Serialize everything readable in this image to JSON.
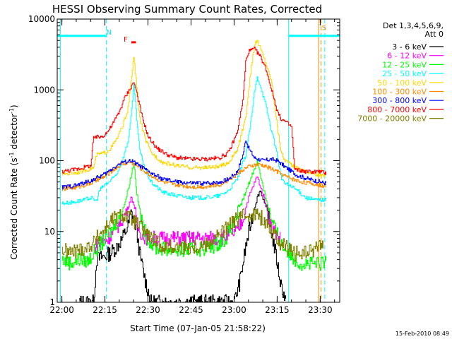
{
  "chart_data": {
    "type": "line",
    "title": "HESSI Observing Summary Count Rates, Corrected",
    "xlabel": "Start Time (07-Jan-05 21:58:22)",
    "ylabel_main": "Corrected Count Rate (s",
    "ylabel_sup1": "-1",
    "ylabel_mid": " detector",
    "ylabel_sup2": "-1",
    "ylabel_end": ")",
    "footer": "15-Feb-2010 08:49",
    "x_unit": "minutes",
    "xlim": [
      -1.63,
      96.8
    ],
    "ylim": [
      1,
      10000
    ],
    "yscale": "log",
    "x_ticks": [
      {
        "value": 0,
        "label": "22:00"
      },
      {
        "value": 15,
        "label": "22:15"
      },
      {
        "value": 30,
        "label": "22:30"
      },
      {
        "value": 45,
        "label": "22:45"
      },
      {
        "value": 60,
        "label": "23:00"
      },
      {
        "value": 75,
        "label": "23:15"
      },
      {
        "value": 90,
        "label": "23:30"
      }
    ],
    "y_ticks": [
      {
        "value": 1,
        "label": "1"
      },
      {
        "value": 10,
        "label": "10"
      },
      {
        "value": 100,
        "label": "100"
      },
      {
        "value": 1000,
        "label": "1000"
      },
      {
        "value": 10000,
        "label": "10000"
      }
    ],
    "legend": {
      "header1": "Det 1,3,4,5,6,9,",
      "header2": "Att 0",
      "position": "right"
    },
    "series": [
      {
        "name": "3 - 6 keV",
        "color": "#000000",
        "points": [
          [
            6,
            1
          ],
          [
            11,
            1
          ],
          [
            12,
            4
          ],
          [
            15,
            4.5
          ],
          [
            17,
            5
          ],
          [
            19,
            6
          ],
          [
            21,
            8
          ],
          [
            23,
            12
          ],
          [
            24,
            18
          ],
          [
            25,
            16
          ],
          [
            26,
            10
          ],
          [
            27,
            5
          ],
          [
            29,
            2
          ],
          [
            31,
            1
          ],
          [
            60,
            1
          ],
          [
            62,
            2
          ],
          [
            64,
            6
          ],
          [
            66,
            15
          ],
          [
            68,
            30
          ],
          [
            69,
            38
          ],
          [
            70,
            30
          ],
          [
            72,
            15
          ],
          [
            74,
            6
          ],
          [
            76,
            2
          ],
          [
            78,
            1
          ]
        ]
      },
      {
        "name": "6 - 12 keV",
        "color": "#ff00ff",
        "points": [
          [
            11,
            6
          ],
          [
            14,
            7
          ],
          [
            16,
            8
          ],
          [
            18,
            10
          ],
          [
            20,
            13
          ],
          [
            22,
            18
          ],
          [
            23,
            22
          ],
          [
            24,
            30
          ],
          [
            25,
            25
          ],
          [
            26,
            12
          ],
          [
            28,
            9
          ],
          [
            30,
            8
          ],
          [
            55,
            8
          ],
          [
            58,
            9
          ],
          [
            61,
            10
          ],
          [
            63,
            15
          ],
          [
            65,
            30
          ],
          [
            67,
            48
          ],
          [
            68,
            60
          ],
          [
            69,
            45
          ],
          [
            71,
            25
          ],
          [
            73,
            12
          ],
          [
            75,
            9
          ],
          [
            76,
            8
          ]
        ]
      },
      {
        "name": "12 - 25 keV",
        "color": "#00ff00",
        "points": [
          [
            0,
            4
          ],
          [
            3,
            3.6
          ],
          [
            6,
            4
          ],
          [
            9,
            3.8
          ],
          [
            11,
            5
          ],
          [
            14,
            7
          ],
          [
            17,
            10
          ],
          [
            20,
            16
          ],
          [
            22,
            26
          ],
          [
            24,
            60
          ],
          [
            25,
            95
          ],
          [
            26,
            35
          ],
          [
            28,
            12
          ],
          [
            30,
            8
          ],
          [
            32,
            6
          ],
          [
            38,
            5.5
          ],
          [
            45,
            5.5
          ],
          [
            52,
            6
          ],
          [
            57,
            8
          ],
          [
            60,
            14
          ],
          [
            63,
            28
          ],
          [
            66,
            60
          ],
          [
            68,
            100
          ],
          [
            69,
            65
          ],
          [
            71,
            30
          ],
          [
            73,
            14
          ],
          [
            75,
            9
          ],
          [
            77,
            6
          ],
          [
            80,
            4.5
          ],
          [
            83,
            3.6
          ],
          [
            88,
            3.4
          ],
          [
            92,
            3.6
          ]
        ]
      },
      {
        "name": "25 - 50 keV",
        "color": "#00ffff",
        "points": [
          [
            0,
            25
          ],
          [
            4,
            26
          ],
          [
            8,
            28
          ],
          [
            10,
            30
          ],
          [
            12,
            27
          ],
          [
            13,
            38
          ],
          [
            15,
            46
          ],
          [
            17,
            52
          ],
          [
            19,
            65
          ],
          [
            21,
            100
          ],
          [
            23,
            190
          ],
          [
            24,
            400
          ],
          [
            25,
            1200
          ],
          [
            26,
            380
          ],
          [
            27,
            140
          ],
          [
            29,
            75
          ],
          [
            31,
            50
          ],
          [
            35,
            36
          ],
          [
            40,
            32
          ],
          [
            45,
            30
          ],
          [
            50,
            30
          ],
          [
            55,
            32
          ],
          [
            58,
            38
          ],
          [
            61,
            55
          ],
          [
            64,
            120
          ],
          [
            66,
            400
          ],
          [
            67,
            900
          ],
          [
            68,
            1500
          ],
          [
            69,
            1200
          ],
          [
            71,
            600
          ],
          [
            73,
            260
          ],
          [
            75,
            120
          ],
          [
            76,
            65
          ],
          [
            77,
            50
          ],
          [
            79,
            45
          ],
          [
            82,
            38
          ],
          [
            85,
            30
          ],
          [
            88,
            28
          ],
          [
            92,
            28
          ]
        ]
      },
      {
        "name": "50 - 100 keV",
        "color": "#ffd700",
        "points": [
          [
            0,
            65
          ],
          [
            5,
            68
          ],
          [
            9,
            75
          ],
          [
            11,
            80
          ],
          [
            12,
            120
          ],
          [
            15,
            130
          ],
          [
            17,
            150
          ],
          [
            19,
            200
          ],
          [
            21,
            300
          ],
          [
            23,
            550
          ],
          [
            24,
            1300
          ],
          [
            25,
            2900
          ],
          [
            26,
            1100
          ],
          [
            27,
            400
          ],
          [
            29,
            200
          ],
          [
            31,
            130
          ],
          [
            35,
            95
          ],
          [
            40,
            85
          ],
          [
            45,
            80
          ],
          [
            50,
            80
          ],
          [
            55,
            82
          ],
          [
            58,
            95
          ],
          [
            61,
            140
          ],
          [
            64,
            400
          ],
          [
            66,
            2200
          ],
          [
            67,
            4200
          ],
          [
            68,
            5000
          ],
          [
            69,
            4000
          ],
          [
            71,
            2400
          ],
          [
            73,
            1300
          ],
          [
            74,
            650
          ],
          [
            75,
            300
          ],
          [
            76,
            160
          ],
          [
            77,
            110
          ],
          [
            80,
            85
          ],
          [
            85,
            70
          ],
          [
            88,
            65
          ],
          [
            92,
            60
          ]
        ]
      },
      {
        "name": "100 - 300 keV",
        "color": "#ff8c00",
        "points": [
          [
            0,
            40
          ],
          [
            5,
            42
          ],
          [
            10,
            48
          ],
          [
            15,
            60
          ],
          [
            18,
            75
          ],
          [
            21,
            90
          ],
          [
            24,
            95
          ],
          [
            27,
            80
          ],
          [
            30,
            65
          ],
          [
            35,
            50
          ],
          [
            40,
            45
          ],
          [
            45,
            43
          ],
          [
            50,
            43
          ],
          [
            55,
            46
          ],
          [
            60,
            60
          ],
          [
            63,
            75
          ],
          [
            66,
            85
          ],
          [
            69,
            88
          ],
          [
            72,
            80
          ],
          [
            75,
            70
          ],
          [
            78,
            60
          ],
          [
            82,
            52
          ],
          [
            86,
            48
          ],
          [
            90,
            45
          ],
          [
            92,
            44
          ]
        ]
      },
      {
        "name": "300 - 800 keV",
        "color": "#0000ff",
        "points": [
          [
            0,
            42
          ],
          [
            5,
            45
          ],
          [
            10,
            52
          ],
          [
            15,
            65
          ],
          [
            18,
            80
          ],
          [
            21,
            95
          ],
          [
            24,
            100
          ],
          [
            27,
            85
          ],
          [
            30,
            70
          ],
          [
            35,
            55
          ],
          [
            40,
            50
          ],
          [
            45,
            48
          ],
          [
            50,
            48
          ],
          [
            55,
            50
          ],
          [
            58,
            55
          ],
          [
            61,
            70
          ],
          [
            63,
            120
          ],
          [
            64,
            200
          ],
          [
            65,
            150
          ],
          [
            67,
            110
          ],
          [
            70,
            100
          ],
          [
            73,
            105
          ],
          [
            75,
            100
          ],
          [
            78,
            80
          ],
          [
            82,
            62
          ],
          [
            86,
            55
          ],
          [
            90,
            50
          ],
          [
            92,
            48
          ]
        ]
      },
      {
        "name": "800 - 7000 keV",
        "color": "#ff0000",
        "points": [
          [
            0,
            70
          ],
          [
            5,
            76
          ],
          [
            10,
            85
          ],
          [
            11,
            210
          ],
          [
            14,
            220
          ],
          [
            16,
            260
          ],
          [
            18,
            350
          ],
          [
            20,
            500
          ],
          [
            22,
            800
          ],
          [
            24,
            1100
          ],
          [
            25,
            1300
          ],
          [
            26,
            900
          ],
          [
            28,
            400
          ],
          [
            30,
            220
          ],
          [
            33,
            150
          ],
          [
            37,
            120
          ],
          [
            40,
            110
          ],
          [
            45,
            105
          ],
          [
            50,
            105
          ],
          [
            55,
            110
          ],
          [
            58,
            130
          ],
          [
            61,
            250
          ],
          [
            63,
            700
          ],
          [
            64,
            2500
          ],
          [
            65,
            3500
          ],
          [
            67,
            3800
          ],
          [
            69,
            3000
          ],
          [
            71,
            2000
          ],
          [
            73,
            1000
          ],
          [
            75,
            500
          ],
          [
            76,
            400
          ],
          [
            78,
            350
          ],
          [
            80,
            300
          ],
          [
            81,
            75
          ],
          [
            85,
            70
          ],
          [
            90,
            70
          ],
          [
            92,
            66
          ]
        ]
      },
      {
        "name": "7000 - 20000 keV",
        "color": "#808000",
        "points": [
          [
            0,
            5.5
          ],
          [
            3,
            5
          ],
          [
            6,
            5.5
          ],
          [
            9,
            6
          ],
          [
            11,
            7
          ],
          [
            13,
            9
          ],
          [
            15,
            11
          ],
          [
            17,
            14
          ],
          [
            19,
            16
          ],
          [
            21,
            17
          ],
          [
            23,
            16
          ],
          [
            25,
            14
          ],
          [
            27,
            12
          ],
          [
            29,
            10
          ],
          [
            31,
            8
          ],
          [
            33,
            7
          ],
          [
            36,
            6
          ],
          [
            40,
            6
          ],
          [
            45,
            6
          ],
          [
            50,
            6.5
          ],
          [
            53,
            8
          ],
          [
            56,
            10
          ],
          [
            59,
            13
          ],
          [
            62,
            16
          ],
          [
            64,
            17
          ],
          [
            66,
            18
          ],
          [
            68,
            17
          ],
          [
            70,
            15
          ],
          [
            72,
            12
          ],
          [
            74,
            9
          ],
          [
            76,
            7
          ],
          [
            78,
            6
          ],
          [
            80,
            5
          ],
          [
            83,
            4.8
          ],
          [
            86,
            5
          ],
          [
            89,
            6
          ],
          [
            90,
            7
          ],
          [
            91,
            6
          ]
        ]
      }
    ],
    "annotations": [
      {
        "label": "N",
        "x": 15.5,
        "y": 6000,
        "color": "#00e5ee"
      },
      {
        "label": "F",
        "x": 21.5,
        "y": 4800,
        "color": "#ff0000"
      },
      {
        "label": "S",
        "x": 90.6,
        "y": 7000,
        "color": "#ff8c00"
      }
    ],
    "bars": [
      {
        "name": "N",
        "color": "#00ffff",
        "segments": [
          [
            -1.63,
            15.5
          ],
          [
            79,
            96.8
          ]
        ],
        "y": 5800
      },
      {
        "name": "F",
        "color": "#ff0000",
        "segments": [
          [
            24.2,
            25.8
          ]
        ],
        "y": 4700
      }
    ],
    "vlines": [
      {
        "x": -0.5,
        "color": "#00ffff",
        "dash": false
      },
      {
        "x": 15.5,
        "color": "#00ffff",
        "dash": true
      },
      {
        "x": 79,
        "color": "#00ffff",
        "dash": false
      },
      {
        "x": 91.6,
        "color": "#00ffff",
        "dash": true
      },
      {
        "x": 89.5,
        "color": "#ff8c00",
        "dash": false
      },
      {
        "x": 90.3,
        "color": "#ff8c00",
        "dash": true
      }
    ]
  }
}
